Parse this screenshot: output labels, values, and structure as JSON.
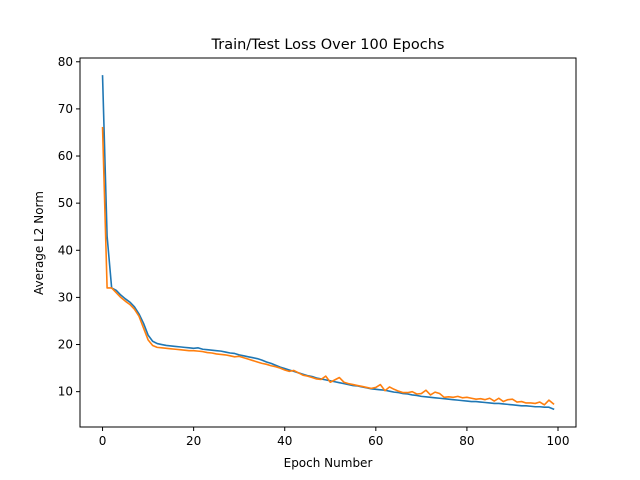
{
  "chart_data": {
    "type": "line",
    "title": "Train/Test Loss Over 100 Epochs",
    "xlabel": "Epoch Number",
    "ylabel": "Average L2 Norm",
    "xlim": [
      -4.95,
      103.95
    ],
    "ylim": [
      2.5,
      80.8
    ],
    "xticks": [
      0,
      20,
      40,
      60,
      80,
      100
    ],
    "yticks": [
      10,
      20,
      30,
      40,
      50,
      60,
      70,
      80
    ],
    "grid": false,
    "legend": "none",
    "series": [
      {
        "color": "#1f77b4",
        "x": [
          0,
          1,
          2,
          3,
          4,
          5,
          6,
          7,
          8,
          9,
          10,
          11,
          12,
          13,
          14,
          15,
          16,
          17,
          18,
          19,
          20,
          21,
          22,
          23,
          24,
          25,
          26,
          27,
          28,
          29,
          30,
          31,
          32,
          33,
          34,
          35,
          36,
          37,
          38,
          39,
          40,
          41,
          42,
          43,
          44,
          45,
          46,
          47,
          48,
          49,
          50,
          51,
          52,
          53,
          54,
          55,
          56,
          57,
          58,
          59,
          60,
          61,
          62,
          63,
          64,
          65,
          66,
          67,
          68,
          69,
          70,
          71,
          72,
          73,
          74,
          75,
          76,
          77,
          78,
          79,
          80,
          81,
          82,
          83,
          84,
          85,
          86,
          87,
          88,
          89,
          90,
          91,
          92,
          93,
          94,
          95,
          96,
          97,
          98,
          99
        ],
        "y": [
          77.0,
          43.0,
          32.0,
          31.5,
          30.5,
          29.7,
          29.0,
          28.0,
          26.5,
          24.5,
          22.0,
          20.7,
          20.2,
          20.0,
          19.8,
          19.7,
          19.6,
          19.5,
          19.4,
          19.3,
          19.2,
          19.3,
          19.0,
          18.9,
          18.8,
          18.7,
          18.6,
          18.4,
          18.2,
          18.1,
          17.8,
          17.6,
          17.4,
          17.2,
          17.0,
          16.7,
          16.3,
          16.0,
          15.6,
          15.2,
          14.9,
          14.6,
          14.3,
          14.0,
          13.7,
          13.4,
          13.2,
          12.9,
          12.7,
          12.5,
          12.3,
          12.1,
          11.9,
          11.7,
          11.5,
          11.3,
          11.2,
          11.0,
          10.8,
          10.6,
          10.5,
          10.4,
          10.3,
          10.1,
          9.9,
          9.8,
          9.6,
          9.5,
          9.3,
          9.2,
          9.0,
          8.9,
          8.8,
          8.7,
          8.6,
          8.5,
          8.4,
          8.3,
          8.2,
          8.1,
          8.0,
          7.9,
          7.9,
          7.8,
          7.7,
          7.6,
          7.5,
          7.5,
          7.4,
          7.3,
          7.2,
          7.1,
          7.0,
          7.0,
          6.9,
          6.8,
          6.8,
          6.7,
          6.7,
          6.3
        ]
      },
      {
        "color": "#ff7f0e",
        "x": [
          0,
          1,
          2,
          3,
          4,
          5,
          6,
          7,
          8,
          9,
          10,
          11,
          12,
          13,
          14,
          15,
          16,
          17,
          18,
          19,
          20,
          21,
          22,
          23,
          24,
          25,
          26,
          27,
          28,
          29,
          30,
          31,
          32,
          33,
          34,
          35,
          36,
          37,
          38,
          39,
          40,
          41,
          42,
          43,
          44,
          45,
          46,
          47,
          48,
          49,
          50,
          51,
          52,
          53,
          54,
          55,
          56,
          57,
          58,
          59,
          60,
          61,
          62,
          63,
          64,
          65,
          66,
          67,
          68,
          69,
          70,
          71,
          72,
          73,
          74,
          75,
          76,
          77,
          78,
          79,
          80,
          81,
          82,
          83,
          84,
          85,
          86,
          87,
          88,
          89,
          90,
          91,
          92,
          93,
          94,
          95,
          96,
          97,
          98,
          99
        ],
        "y": [
          66.0,
          32.0,
          32.0,
          31.0,
          30.0,
          29.2,
          28.5,
          27.5,
          26.0,
          23.5,
          21.0,
          19.8,
          19.4,
          19.3,
          19.2,
          19.1,
          19.0,
          18.9,
          18.8,
          18.7,
          18.7,
          18.6,
          18.5,
          18.3,
          18.2,
          18.0,
          17.9,
          17.8,
          17.6,
          17.4,
          17.5,
          17.2,
          16.9,
          16.6,
          16.3,
          16.0,
          15.8,
          15.5,
          15.3,
          15.0,
          14.6,
          14.3,
          14.5,
          14.0,
          13.5,
          13.3,
          13.0,
          12.7,
          12.6,
          13.3,
          12.0,
          12.5,
          13.0,
          12.0,
          11.7,
          11.5,
          11.3,
          11.1,
          10.9,
          10.7,
          10.9,
          11.5,
          10.2,
          11.0,
          10.5,
          10.1,
          9.8,
          9.8,
          10.0,
          9.5,
          9.6,
          10.3,
          9.3,
          9.9,
          9.6,
          8.8,
          8.9,
          8.8,
          9.0,
          8.7,
          8.8,
          8.6,
          8.4,
          8.5,
          8.3,
          8.6,
          8.0,
          8.6,
          7.9,
          8.3,
          8.4,
          7.8,
          7.9,
          7.6,
          7.6,
          7.5,
          7.8,
          7.2,
          8.2,
          7.4
        ]
      }
    ]
  }
}
